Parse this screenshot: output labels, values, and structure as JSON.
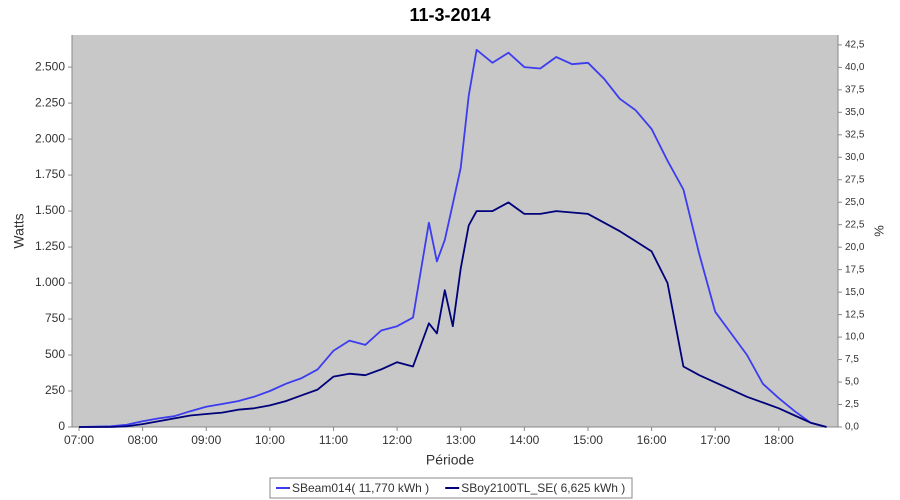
{
  "chart_data": {
    "type": "line",
    "title": "11-3-2014",
    "x_label": "Période",
    "y_label": "Watts",
    "y2_label": "%",
    "x": [
      7,
      7.25,
      7.5,
      7.75,
      8,
      8.25,
      8.5,
      8.75,
      9,
      9.25,
      9.5,
      9.75,
      10,
      10.25,
      10.5,
      10.75,
      11,
      11.25,
      11.5,
      11.75,
      12,
      12.25,
      12.5,
      12.625,
      12.75,
      12.875,
      13,
      13.125,
      13.25,
      13.5,
      13.75,
      14,
      14.25,
      14.5,
      14.75,
      15,
      15.25,
      15.5,
      15.75,
      16,
      16.25,
      16.5,
      16.75,
      17,
      17.25,
      17.5,
      17.75,
      18,
      18.25,
      18.5,
      18.75
    ],
    "series": [
      {
        "name": "SBeam014( 11,770 kWh )",
        "color": "#3c3cf0",
        "values": [
          0,
          2,
          5,
          15,
          40,
          60,
          75,
          110,
          140,
          160,
          180,
          210,
          250,
          300,
          340,
          400,
          530,
          600,
          570,
          670,
          700,
          760,
          1420,
          1150,
          1300,
          1550,
          1800,
          2300,
          2620,
          2530,
          2600,
          2500,
          2490,
          2570,
          2520,
          2530,
          2420,
          2280,
          2200,
          2070,
          1850,
          1650,
          1200,
          800,
          650,
          500,
          300,
          200,
          110,
          30,
          0
        ]
      },
      {
        "name": "SBoy2100TL_SE( 6,625 kWh )",
        "color": "#00007a",
        "values": [
          0,
          0,
          0,
          5,
          20,
          40,
          60,
          80,
          90,
          100,
          120,
          130,
          150,
          180,
          220,
          260,
          350,
          370,
          360,
          400,
          450,
          420,
          720,
          650,
          950,
          700,
          1100,
          1400,
          1500,
          1500,
          1560,
          1480,
          1480,
          1500,
          1490,
          1480,
          1420,
          1360,
          1290,
          1220,
          1000,
          420,
          360,
          310,
          260,
          210,
          170,
          130,
          80,
          30,
          0
        ]
      }
    ],
    "xlim": [
      6.89,
      18.93
    ],
    "xticks": [
      {
        "value": 7,
        "label": "07:00"
      },
      {
        "value": 8,
        "label": "08:00"
      },
      {
        "value": 9,
        "label": "09:00"
      },
      {
        "value": 10,
        "label": "10:00"
      },
      {
        "value": 11,
        "label": "11:00"
      },
      {
        "value": 12,
        "label": "12:00"
      },
      {
        "value": 13,
        "label": "13:00"
      },
      {
        "value": 14,
        "label": "14:00"
      },
      {
        "value": 15,
        "label": "15:00"
      },
      {
        "value": 16,
        "label": "16:00"
      },
      {
        "value": 17,
        "label": "17:00"
      },
      {
        "value": 18,
        "label": "18:00"
      }
    ],
    "ylim": [
      0,
      2723
    ],
    "yticks": [
      0,
      250,
      500,
      750,
      {
        "value": 1000,
        "label": "1.000"
      },
      {
        "value": 1250,
        "label": "1.250"
      },
      {
        "value": 1500,
        "label": "1.500"
      },
      {
        "value": 1750,
        "label": "1.750"
      },
      {
        "value": 2000,
        "label": "2.000"
      },
      {
        "value": 2250,
        "label": "2.250"
      },
      {
        "value": 2500,
        "label": "2.500"
      }
    ],
    "y2lim": [
      0,
      43.6
    ],
    "y2ticks": [
      {
        "value": 0,
        "label": "0,0"
      },
      {
        "value": 2.5,
        "label": "2,5"
      },
      {
        "value": 5,
        "label": "5,0"
      },
      {
        "value": 7.5,
        "label": "7,5"
      },
      {
        "value": 10,
        "label": "10,0"
      },
      {
        "value": 12.5,
        "label": "12,5"
      },
      {
        "value": 15,
        "label": "15,0"
      },
      {
        "value": 17.5,
        "label": "17,5"
      },
      {
        "value": 20,
        "label": "20,0"
      },
      {
        "value": 22.5,
        "label": "22,5"
      },
      {
        "value": 25,
        "label": "25,0"
      },
      {
        "value": 27.5,
        "label": "27,5"
      },
      {
        "value": 30,
        "label": "30,0"
      },
      {
        "value": 32.5,
        "label": "32,5"
      },
      {
        "value": 35,
        "label": "35,0"
      },
      {
        "value": 37.5,
        "label": "37,5"
      },
      {
        "value": 40,
        "label": "40,0"
      },
      {
        "value": 42.5,
        "label": "42,5"
      }
    ],
    "grid": false,
    "legend": "bottom"
  }
}
